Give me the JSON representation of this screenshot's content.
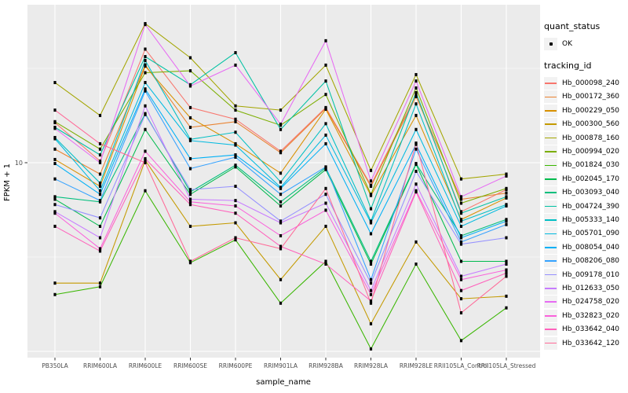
{
  "figure": {
    "y_tick_label": "10",
    "panel_bg": "#EBEBEB",
    "grid_color": "#FFFFFF",
    "point_color": "#000000",
    "axis_text_color": "#4D4D4D"
  },
  "legend": {
    "quant": {
      "title": "quant_status",
      "items": [
        {
          "label": "OK",
          "swatch": "black-point"
        }
      ]
    },
    "tracking": {
      "title": "tracking_id"
    }
  },
  "chart_data": {
    "type": "line",
    "title": "",
    "xlabel": "sample_name",
    "ylabel": "FPKM + 1",
    "yscale": "log10",
    "y_ticks": [
      10
    ],
    "ylim": [
      0.93,
      68
    ],
    "grid": true,
    "legend_position": "right",
    "marker": "black-square-point",
    "categories": [
      "PB350LA",
      "RRIM600LA",
      "RRIM600LE",
      "RRIM600SE",
      "RRIM600PE",
      "RRIM901LA",
      "RRIM928BA",
      "RRIM928LA",
      "RRIM928LE",
      "RRII105LA_Control",
      "RRII105LA_Stressed"
    ],
    "series": [
      {
        "name": "Hb_000098_240",
        "color": "#F8766D",
        "values": [
          16.3,
          10.2,
          40,
          19.6,
          17,
          11.5,
          19.6,
          7.6,
          23,
          5.5,
          7.2
        ]
      },
      {
        "name": "Hb_000172_360",
        "color": "#EA8331",
        "values": [
          11.8,
          8.7,
          33,
          15.4,
          16.5,
          11.3,
          19.4,
          7.5,
          22.4,
          6.4,
          6.9
        ]
      },
      {
        "name": "Hb_000229_050",
        "color": "#D89000",
        "values": [
          10.4,
          7.5,
          32.5,
          17.3,
          12.6,
          8.8,
          19.2,
          6.7,
          17.8,
          5,
          6.5
        ]
      },
      {
        "name": "Hb_000300_560",
        "color": "#C49A00",
        "values": [
          2.3,
          2.3,
          10.3,
          4.6,
          4.8,
          2.4,
          4.6,
          1.4,
          3.8,
          1.9,
          1.96
        ]
      },
      {
        "name": "Hb_000878_160",
        "color": "#A3A500",
        "values": [
          26.6,
          17.8,
          54.6,
          36,
          20,
          19,
          32.9,
          9.1,
          29.3,
          8.2,
          8.7
        ]
      },
      {
        "name": "Hb_000994_020",
        "color": "#7CAE00",
        "values": [
          16.5,
          11.8,
          30,
          30.7,
          19,
          15.8,
          23,
          6.8,
          24.9,
          6.1,
          7.3
        ]
      },
      {
        "name": "Hb_001824_030",
        "color": "#39B600",
        "values": [
          2,
          2.2,
          7.1,
          2.95,
          3.9,
          1.8,
          3,
          1.03,
          2.9,
          1.14,
          1.7
        ]
      },
      {
        "name": "Hb_002045_170",
        "color": "#00BB4E",
        "values": [
          6.4,
          4.6,
          15,
          6.8,
          9.5,
          5.9,
          9.2,
          2.9,
          9.8,
          3,
          3
        ]
      },
      {
        "name": "Hb_003093_040",
        "color": "#00BF7D",
        "values": [
          6.6,
          6.2,
          18.2,
          7,
          9.7,
          6.2,
          9.4,
          3,
          9.9,
          4.1,
          5
        ]
      },
      {
        "name": "Hb_004724_390",
        "color": "#00C1A3",
        "values": [
          15.4,
          11,
          36.5,
          25.9,
          38.3,
          15,
          27.1,
          5.7,
          23.5,
          5.4,
          6.6
        ]
      },
      {
        "name": "Hb_005333_140",
        "color": "#00BFC4",
        "values": [
          13.6,
          7.8,
          34.8,
          13.3,
          14.5,
          7.9,
          16.1,
          4.9,
          20.5,
          4.9,
          6
        ]
      },
      {
        "name": "Hb_005701_090",
        "color": "#00BAE0",
        "values": [
          13.4,
          7.1,
          26.6,
          13.1,
          12.4,
          7.4,
          14,
          4.8,
          15,
          4.6,
          5.9
        ]
      },
      {
        "name": "Hb_008054_040",
        "color": "#00B0F6",
        "values": [
          9.9,
          6.8,
          24.6,
          10.5,
          11,
          7.3,
          12.6,
          4.2,
          12.5,
          4,
          4.9
        ]
      },
      {
        "name": "Hb_008206_080",
        "color": "#35A2FF",
        "values": [
          8.2,
          6.3,
          24,
          9.3,
          10.7,
          6.8,
          9.5,
          2.4,
          11.8,
          3.8,
          4.7
        ]
      },
      {
        "name": "Hb_009178_010",
        "color": "#9590FF",
        "values": [
          6,
          5.1,
          18,
          7.2,
          7.5,
          4.9,
          6.8,
          2.3,
          9,
          3.7,
          4
        ]
      },
      {
        "name": "Hb_012633_050",
        "color": "#C77CFF",
        "values": [
          5.5,
          4,
          20,
          6.4,
          6.3,
          4.8,
          6.1,
          2.1,
          7.7,
          2.5,
          2.9
        ]
      },
      {
        "name": "Hb_024758_020",
        "color": "#E76BF3",
        "values": [
          15.2,
          10,
          54,
          25.5,
          32.9,
          16,
          44.3,
          8,
          27.1,
          6.6,
          8.5
        ]
      },
      {
        "name": "Hb_032823_020",
        "color": "#FA62DB",
        "values": [
          5.4,
          3.5,
          11.5,
          6.2,
          5.9,
          4.1,
          5.6,
          2,
          7.1,
          2.4,
          2.7
        ]
      },
      {
        "name": "Hb_033642_040",
        "color": "#FF62BC",
        "values": [
          4.6,
          3.4,
          10.5,
          6,
          5.4,
          3.6,
          2.9,
          1.85,
          7,
          2.1,
          2.6
        ]
      },
      {
        "name": "Hb_033642_120",
        "color": "#FF6A98",
        "values": [
          19,
          12.6,
          10,
          3,
          4,
          3.5,
          7.3,
          1.8,
          12.7,
          1.6,
          2.5
        ]
      }
    ]
  }
}
